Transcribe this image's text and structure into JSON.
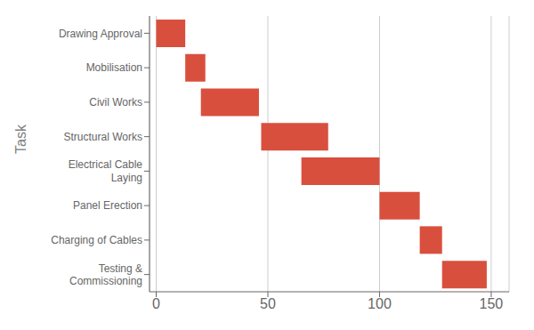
{
  "chart_data": {
    "type": "bar",
    "orientation": "horizontal",
    "stacked": true,
    "categories": [
      "Drawing Approval",
      "Mobilisation",
      "Civil Works",
      "Structural Works",
      "Electrical Cable\nLaying",
      "Panel Erection",
      "Charging of Cables",
      "Testing &\nCommissioning"
    ],
    "starts": [
      0,
      13,
      20,
      47,
      65,
      100,
      118,
      128
    ],
    "values": [
      13,
      9,
      26,
      30,
      35,
      18,
      10,
      20
    ],
    "color": "#d94f3d",
    "xlim": [
      -3,
      158
    ],
    "xticks": [
      0,
      50,
      100,
      150
    ],
    "ylabel": "Task",
    "grid": true
  }
}
